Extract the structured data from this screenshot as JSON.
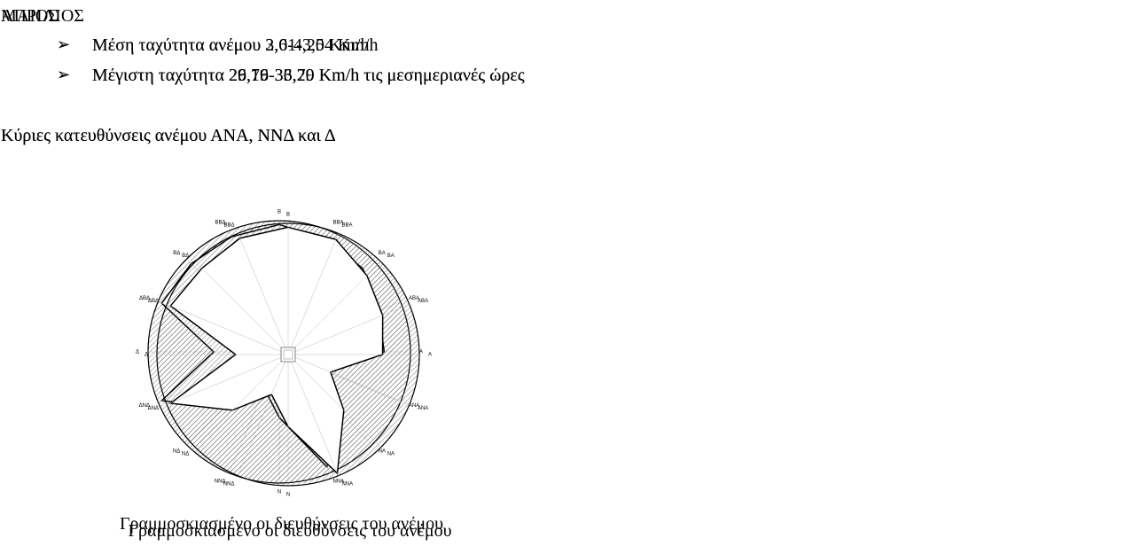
{
  "cells": [
    {
      "month": "ΑΠΡΙΛΙΟΣ",
      "bullets": [
        "Μέση ταχύτητα ανέμου 3,0-4,20 Km/h",
        "Μέγιστη ταχύτητα 29,76-33,29 Km/h τις μεσημεριανές ώρες"
      ],
      "directions": "Κύριες κατευθύνσεις  ανέμου ΑΝΑ, ΝΝΔ και Δ",
      "rose_labels": [
        "Β",
        "ΒΒΑ",
        "ΒΑ",
        "ΑΒΑ",
        "Α",
        "ΑΝΑ",
        "ΝΑ",
        "ΝΝΑ",
        "Ν",
        "ΝΝΔ",
        "ΝΔ",
        "ΔΝΔ",
        "Δ",
        "ΔΒΔ",
        "ΒΔ",
        "ΒΒΔ"
      ],
      "caption": "Γραμμοσκιασμένο οι διευθύνσεις του ανέμου"
    },
    {
      "month": "ΜΑΙΟΣ",
      "bullets": [
        "Μέση ταχύτητα ανέμου 2,61-3,54 Km/h",
        "Μέγιστη ταχύτητα 26,19-36,70 Km/h τις μεσημεριανές ώρες"
      ],
      "directions": "Κύριες κατευθύνσεις  ανέμου ΑΝΑ, ΝΝΔ και Δ",
      "rose_labels": [
        "Β",
        "ΒΒΑ",
        "ΒΑ",
        "ΑΒΑ",
        "Α",
        "ΑΝΑ",
        "ΝΑ",
        "ΝΝΑ",
        "Ν",
        "ΝΝΔ",
        "ΝΔ",
        "ΔΝΔ",
        "Δ",
        "ΔΒΔ",
        "ΒΔ",
        "ΒΒΔ"
      ],
      "caption": "Γραμμοσκιασμένο οι διευθύνσεις του ανέμου"
    }
  ]
}
